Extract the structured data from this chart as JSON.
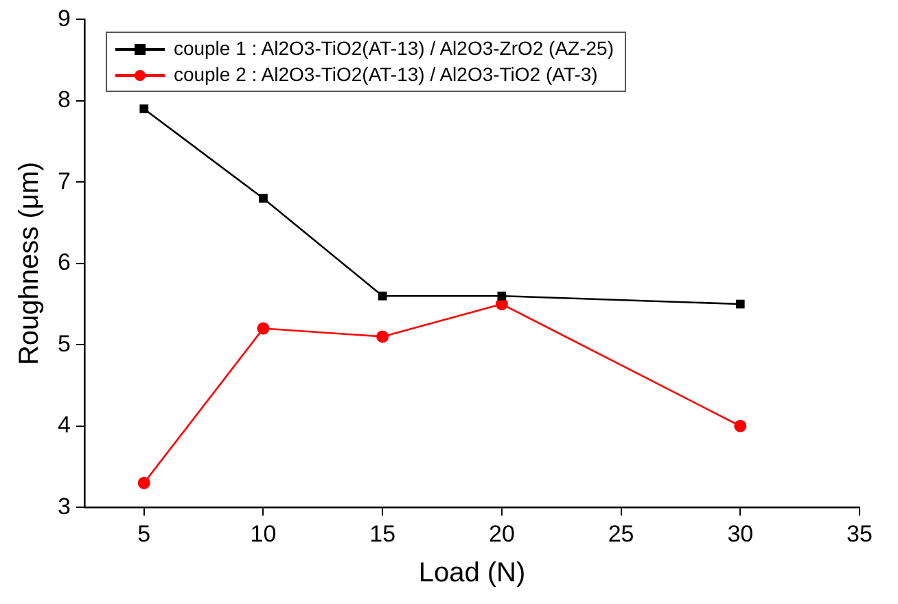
{
  "chart_data": {
    "type": "line",
    "xlabel": "Load (N)",
    "ylabel": "Roughness (μm)",
    "x": [
      5,
      10,
      15,
      20,
      30
    ],
    "series": [
      {
        "name": "couple 1 : Al2O3-TiO2(AT-13) / Al2O3-ZrO2 (AZ-25)",
        "color": "#000000",
        "marker": "square",
        "values": [
          7.9,
          6.8,
          5.6,
          5.6,
          5.5
        ]
      },
      {
        "name": "couple 2 : Al2O3-TiO2(AT-13) / Al2O3-TiO2 (AT-3)",
        "color": "#ff0000",
        "marker": "circle",
        "values": [
          3.3,
          5.2,
          5.1,
          5.5,
          4.0
        ]
      }
    ],
    "xlim": [
      2.5,
      35
    ],
    "xticks": [
      5,
      10,
      15,
      20,
      25,
      30,
      35
    ],
    "ylim": [
      3,
      9
    ],
    "yticks": [
      3,
      4,
      5,
      6,
      7,
      8,
      9
    ],
    "grid": false,
    "legend": "top left",
    "line_style": "solid"
  }
}
